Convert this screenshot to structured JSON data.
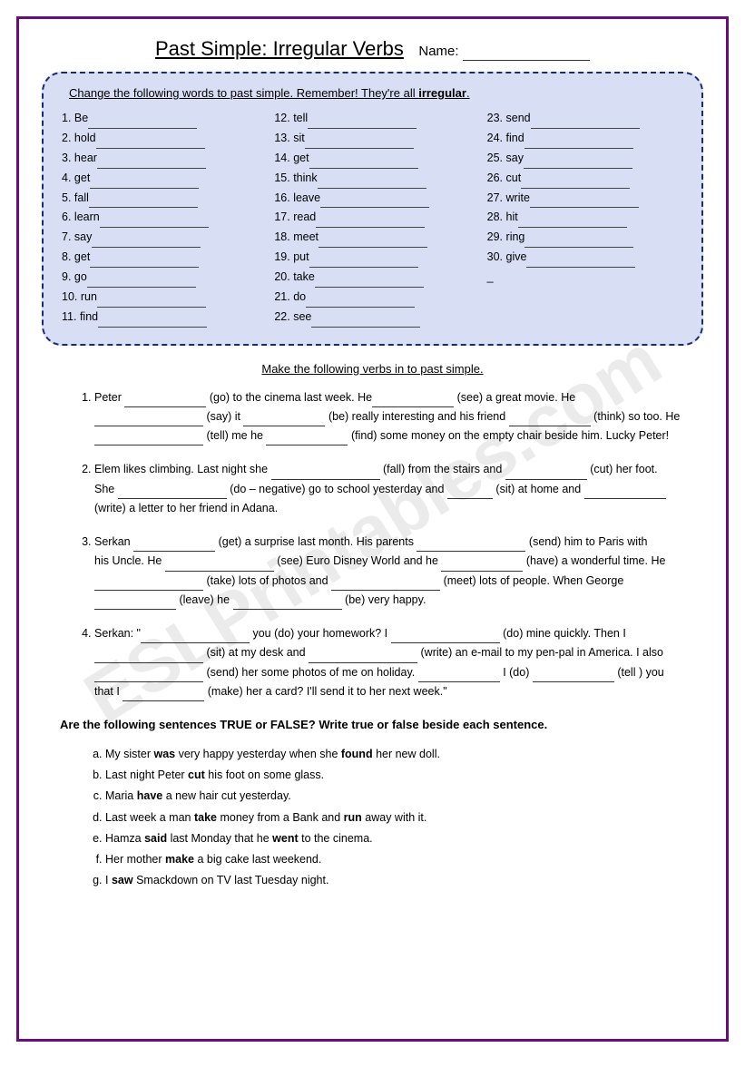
{
  "watermark": "ESLPrintables.com",
  "title": "Past Simple: Irregular Verbs",
  "name_label": "Name:",
  "box1": {
    "instruction_pre": "Change the following words to past simple.  Remember! They're all ",
    "instruction_bold": "irregular",
    "instruction_post": ".",
    "col1": [
      {
        "n": "1.",
        "w": "Be"
      },
      {
        "n": "2.",
        "w": "hold"
      },
      {
        "n": "3.",
        "w": "hear"
      },
      {
        "n": "4.",
        "w": "get"
      },
      {
        "n": "5.",
        "w": "fall"
      },
      {
        "n": "6.",
        "w": "learn"
      },
      {
        "n": "7.",
        "w": "say"
      },
      {
        "n": "8.",
        "w": "get"
      },
      {
        "n": "9.",
        "w": "go"
      },
      {
        "n": "10.",
        "w": "run"
      },
      {
        "n": "11.",
        "w": "find"
      }
    ],
    "col2": [
      {
        "n": "12.",
        "w": "tell"
      },
      {
        "n": "13.",
        "w": "sit"
      },
      {
        "n": "14.",
        "w": "get"
      },
      {
        "n": "15.",
        "w": "think"
      },
      {
        "n": "16.",
        "w": "leave"
      },
      {
        "n": "17.",
        "w": "read"
      },
      {
        "n": "18.",
        "w": "meet"
      },
      {
        "n": "19.",
        "w": "put"
      },
      {
        "n": "20.",
        "w": "take"
      },
      {
        "n": "21.",
        "w": "do"
      },
      {
        "n": "22.",
        "w": "see"
      }
    ],
    "col3": [
      {
        "n": "23.",
        "w": "send"
      },
      {
        "n": "24.",
        "w": "find"
      },
      {
        "n": "25.",
        "w": "say"
      },
      {
        "n": "26.",
        "w": "cut"
      },
      {
        "n": "27.",
        "w": "write"
      },
      {
        "n": "28.",
        "w": "hit"
      },
      {
        "n": "29.",
        "w": "ring"
      },
      {
        "n": "30.",
        "w": "give"
      }
    ],
    "col3_dash": "_"
  },
  "section2": {
    "instruction": "Make the following verbs in to past simple.",
    "q1": {
      "t1": "Peter ",
      "v1": "(go) to the cinema last week.  He",
      "v2": "(see) a great movie.  He ",
      "v3": "(say) it ",
      "v4": "(be) really interesting and his friend ",
      "v5": " (think) so too.   He ",
      "v6": "(tell) me he ",
      "v7": "(find) some money on the empty chair beside him.  Lucky Peter!"
    },
    "q2": {
      "t1": "Elem likes climbing.  Last night she ",
      "v1": "(fall) from the stairs and ",
      "v2": " (cut) her foot. She ",
      "v3": "(do – negative) go to school yesterday and ",
      "v4": " (sit) at home and ",
      "v5": " (write) a letter to her friend in Adana."
    },
    "q3": {
      "t1": "Serkan  ",
      "v1": "(get) a surprise last month.  His parents ",
      "v2": "(send) him to Paris with",
      "t2": "his Uncle.  He ",
      "v3": "(see) Euro Disney World and he ",
      "v4": " (have) a wonderful time.  He ",
      "v5": "(take) lots of photos and  ",
      "v6": "(meet) lots of people.  When George ",
      "v7": "(leave) he ",
      "v8": "(be) very happy."
    },
    "q4": {
      "t1": "Serkan: \"",
      "v1": "you (do) your homework?  I ",
      "v2": "(do) mine quickly.  Then I ",
      "v3": "(sit) at my desk and ",
      "v4": "(write) an e-mail to my pen-pal in America.  I  also ",
      "v5": "(send) her some photos of me on holiday.  ",
      "v6": "I (do) ",
      "v7": "(tell ) you that I ",
      "v8": "(make) her a card?  I'll send it to her next week.\""
    }
  },
  "section3": {
    "instruction": "Are the following sentences TRUE or FALSE?     Write true or false beside each sentence.",
    "items": [
      {
        "pre": "My sister ",
        "b1": "was",
        "mid": " very happy yesterday when she ",
        "b2": "found",
        "post": " her new doll."
      },
      {
        "pre": "Last night Peter ",
        "b1": "cut",
        "mid": "  his foot on some glass.",
        "b2": "",
        "post": ""
      },
      {
        "pre": "Maria ",
        "b1": "have",
        "mid": " a new hair cut yesterday.",
        "b2": "",
        "post": ""
      },
      {
        "pre": "Last week a man ",
        "b1": "take",
        "mid": " money from a Bank and ",
        "b2": "run",
        "post": " away with it."
      },
      {
        "pre": "Hamza ",
        "b1": "said",
        "mid": " last Monday that he ",
        "b2": "went",
        "post": " to the cinema."
      },
      {
        "pre": "Her mother ",
        "b1": "make",
        "mid": " a big cake last weekend.",
        "b2": "",
        "post": ""
      },
      {
        "pre": "I ",
        "b1": "saw",
        "mid": " Smackdown on TV last Tuesday night.",
        "b2": "",
        "post": ""
      }
    ]
  }
}
